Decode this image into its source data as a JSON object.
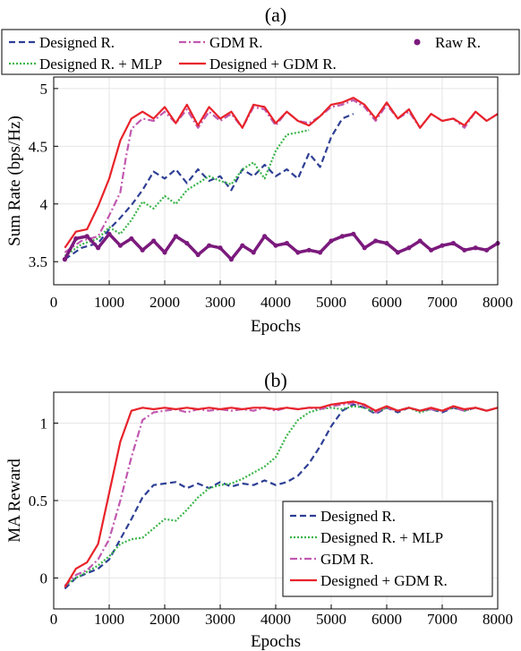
{
  "chart_data": [
    {
      "type": "line",
      "title": "(a)",
      "xlabel": "Epochs",
      "ylabel": "Sum Rate (bps/Hz)",
      "xlim": [
        0,
        8000
      ],
      "ylim": [
        3.3,
        5.1
      ],
      "xticks": [
        0,
        1000,
        2000,
        3000,
        4000,
        5000,
        6000,
        7000,
        8000
      ],
      "yticks": [
        3.5,
        4,
        4.5,
        5
      ],
      "grid": true,
      "legend_position": "top",
      "series": [
        {
          "name": "Designed R.",
          "color": "#2e3f94",
          "style": "dashed",
          "x": [
            200,
            500,
            800,
            1000,
            1200,
            1400,
            1600,
            1800,
            2000,
            2200,
            2400,
            2600,
            2800,
            3000,
            3200,
            3400,
            3600,
            3800,
            4000,
            4200,
            4400,
            4600,
            4800,
            5000,
            5200,
            5400
          ],
          "y": [
            3.52,
            3.62,
            3.66,
            3.78,
            3.88,
            3.99,
            4.12,
            4.28,
            4.22,
            4.3,
            4.18,
            4.3,
            4.2,
            4.24,
            4.12,
            4.3,
            4.24,
            4.34,
            4.24,
            4.3,
            4.22,
            4.44,
            4.32,
            4.58,
            4.74,
            4.78
          ]
        },
        {
          "name": "Designed R. + MLP",
          "color": "#3ab54a",
          "style": "dotted",
          "x": [
            200,
            500,
            800,
            1000,
            1200,
            1400,
            1600,
            1800,
            2000,
            2200,
            2400,
            2600,
            2800,
            3000,
            3200,
            3400,
            3600,
            3800,
            4000,
            4200,
            4400,
            4600
          ],
          "y": [
            3.55,
            3.65,
            3.7,
            3.8,
            3.74,
            3.86,
            4.02,
            3.96,
            4.07,
            4.0,
            4.12,
            4.18,
            4.24,
            4.2,
            4.17,
            4.3,
            4.36,
            4.22,
            4.46,
            4.6,
            4.62,
            4.64
          ]
        },
        {
          "name": "GDM R.",
          "color": "#c158b0",
          "style": "dashdot",
          "x": [
            200,
            500,
            800,
            1000,
            1200,
            1300,
            1400,
            1600,
            1800,
            2000,
            2200,
            2400,
            2600,
            2800,
            3000,
            3200,
            3400,
            3600,
            3800,
            4000,
            4200,
            4400,
            4600,
            4800,
            5000,
            5200,
            5400,
            5600,
            5800,
            6000,
            6200,
            6400,
            6600,
            6800,
            7000,
            7200,
            7400,
            7600,
            7800,
            8000
          ],
          "y": [
            3.58,
            3.68,
            3.72,
            3.9,
            4.1,
            4.4,
            4.65,
            4.74,
            4.72,
            4.8,
            4.7,
            4.82,
            4.66,
            4.8,
            4.72,
            4.78,
            4.66,
            4.84,
            4.82,
            4.68,
            4.8,
            4.72,
            4.7,
            4.76,
            4.84,
            4.86,
            4.9,
            4.84,
            4.72,
            4.86,
            4.74,
            4.8,
            4.66,
            4.78,
            4.72,
            4.74,
            4.66,
            4.8,
            4.72,
            4.78
          ]
        },
        {
          "name": "Designed + GDM R.",
          "color": "#e8232a",
          "style": "solid",
          "x": [
            200,
            400,
            600,
            800,
            1000,
            1200,
            1400,
            1600,
            1800,
            2000,
            2200,
            2400,
            2600,
            2800,
            3000,
            3200,
            3400,
            3600,
            3800,
            4000,
            4200,
            4400,
            4600,
            4800,
            5000,
            5200,
            5400,
            5600,
            5800,
            6000,
            6200,
            6400,
            6600,
            6800,
            7000,
            7200,
            7400,
            7600,
            7800,
            8000
          ],
          "y": [
            3.62,
            3.76,
            3.78,
            3.98,
            4.22,
            4.55,
            4.74,
            4.8,
            4.74,
            4.84,
            4.7,
            4.86,
            4.68,
            4.84,
            4.74,
            4.8,
            4.66,
            4.86,
            4.84,
            4.7,
            4.8,
            4.72,
            4.68,
            4.76,
            4.86,
            4.88,
            4.92,
            4.86,
            4.74,
            4.88,
            4.74,
            4.82,
            4.66,
            4.78,
            4.72,
            4.74,
            4.68,
            4.8,
            4.72,
            4.78
          ]
        },
        {
          "name": "Raw R.",
          "color": "#7b1a7d",
          "style": "markers",
          "x": [
            200,
            400,
            600,
            800,
            1000,
            1200,
            1400,
            1600,
            1800,
            2000,
            2200,
            2400,
            2600,
            2800,
            3000,
            3200,
            3400,
            3600,
            3800,
            4000,
            4200,
            4400,
            4600,
            4800,
            5000,
            5200,
            5400,
            5600,
            5800,
            6000,
            6200,
            6400,
            6600,
            6800,
            7000,
            7200,
            7400,
            7600,
            7800,
            8000
          ],
          "y": [
            3.52,
            3.7,
            3.72,
            3.62,
            3.74,
            3.64,
            3.7,
            3.6,
            3.68,
            3.58,
            3.72,
            3.66,
            3.56,
            3.64,
            3.62,
            3.52,
            3.64,
            3.58,
            3.72,
            3.64,
            3.66,
            3.58,
            3.6,
            3.58,
            3.68,
            3.72,
            3.74,
            3.62,
            3.68,
            3.66,
            3.58,
            3.62,
            3.68,
            3.6,
            3.64,
            3.66,
            3.6,
            3.62,
            3.6,
            3.66
          ]
        }
      ]
    },
    {
      "type": "line",
      "title": "(b)",
      "xlabel": "Epochs",
      "ylabel": "MA Reward",
      "xlim": [
        0,
        8000
      ],
      "ylim": [
        -0.2,
        1.2
      ],
      "xticks": [
        0,
        1000,
        2000,
        3000,
        4000,
        5000,
        6000,
        7000,
        8000
      ],
      "yticks": [
        0,
        0.5,
        1
      ],
      "grid": true,
      "legend_position": "bottom-right",
      "series": [
        {
          "name": "Designed R.",
          "color": "#2e3f94",
          "style": "dashed",
          "x": [
            200,
            400,
            600,
            800,
            1000,
            1200,
            1400,
            1600,
            1800,
            2000,
            2200,
            2400,
            2600,
            2800,
            3000,
            3200,
            3400,
            3600,
            3800,
            4000,
            4200,
            4400,
            4600,
            4800,
            5000,
            5200,
            5400,
            5600,
            5800,
            6000,
            6200,
            6400,
            6600,
            6800,
            7000,
            7200,
            7400,
            7600,
            7800,
            8000
          ],
          "y": [
            -0.07,
            0.0,
            0.03,
            0.06,
            0.12,
            0.25,
            0.38,
            0.52,
            0.6,
            0.61,
            0.62,
            0.58,
            0.61,
            0.58,
            0.62,
            0.59,
            0.61,
            0.6,
            0.63,
            0.6,
            0.62,
            0.66,
            0.74,
            0.85,
            0.98,
            1.08,
            1.12,
            1.1,
            1.06,
            1.1,
            1.07,
            1.1,
            1.08,
            1.09,
            1.07,
            1.1,
            1.08,
            1.1,
            1.08,
            1.1
          ]
        },
        {
          "name": "Designed R. + MLP",
          "color": "#3ab54a",
          "style": "dotted",
          "x": [
            200,
            400,
            600,
            800,
            1000,
            1200,
            1400,
            1600,
            1800,
            2000,
            2200,
            2400,
            2600,
            2800,
            3000,
            3200,
            3400,
            3600,
            3800,
            4000,
            4200,
            4400,
            4600,
            4800,
            5000,
            5200,
            5400,
            5600,
            5800,
            6000,
            6200,
            6400,
            6600,
            6800,
            7000,
            7200,
            7400,
            7600,
            7800,
            8000
          ],
          "y": [
            -0.05,
            0.0,
            0.04,
            0.08,
            0.14,
            0.22,
            0.25,
            0.26,
            0.32,
            0.38,
            0.37,
            0.44,
            0.52,
            0.58,
            0.6,
            0.61,
            0.64,
            0.68,
            0.72,
            0.78,
            0.92,
            1.02,
            1.07,
            1.09,
            1.1,
            1.09,
            1.11,
            1.1,
            1.07,
            1.1,
            1.08,
            1.1,
            1.07,
            1.09,
            1.08,
            1.1,
            1.08,
            1.1,
            1.08,
            1.1
          ]
        },
        {
          "name": "GDM R.",
          "color": "#c158b0",
          "style": "dashdot",
          "x": [
            200,
            400,
            600,
            800,
            1000,
            1200,
            1400,
            1600,
            1800,
            2000,
            2200,
            2400,
            2600,
            2800,
            3000,
            3200,
            3400,
            3600,
            3800,
            4000,
            4200,
            4400,
            4600,
            4800,
            5000,
            5200,
            5400,
            5600,
            5800,
            6000,
            6200,
            6400,
            6600,
            6800,
            7000,
            7200,
            7400,
            7600,
            7800,
            8000
          ],
          "y": [
            -0.05,
            0.02,
            0.05,
            0.12,
            0.25,
            0.5,
            0.78,
            1.02,
            1.07,
            1.08,
            1.09,
            1.07,
            1.09,
            1.08,
            1.09,
            1.08,
            1.09,
            1.08,
            1.1,
            1.08,
            1.1,
            1.09,
            1.1,
            1.09,
            1.11,
            1.12,
            1.13,
            1.11,
            1.07,
            1.1,
            1.08,
            1.1,
            1.08,
            1.09,
            1.08,
            1.1,
            1.08,
            1.1,
            1.08,
            1.1
          ]
        },
        {
          "name": "Designed + GDM R.",
          "color": "#e8232a",
          "style": "solid",
          "x": [
            200,
            400,
            600,
            800,
            1000,
            1200,
            1400,
            1600,
            1800,
            2000,
            2200,
            2400,
            2600,
            2800,
            3000,
            3200,
            3400,
            3600,
            3800,
            4000,
            4200,
            4400,
            4600,
            4800,
            5000,
            5200,
            5400,
            5600,
            5800,
            6000,
            6200,
            6400,
            6600,
            6800,
            7000,
            7200,
            7400,
            7600,
            7800,
            8000
          ],
          "y": [
            -0.06,
            0.06,
            0.1,
            0.22,
            0.55,
            0.88,
            1.08,
            1.1,
            1.09,
            1.1,
            1.09,
            1.1,
            1.09,
            1.1,
            1.09,
            1.1,
            1.09,
            1.1,
            1.1,
            1.09,
            1.1,
            1.09,
            1.1,
            1.1,
            1.12,
            1.13,
            1.14,
            1.12,
            1.08,
            1.11,
            1.08,
            1.1,
            1.08,
            1.1,
            1.08,
            1.11,
            1.09,
            1.1,
            1.08,
            1.1
          ]
        }
      ]
    }
  ]
}
